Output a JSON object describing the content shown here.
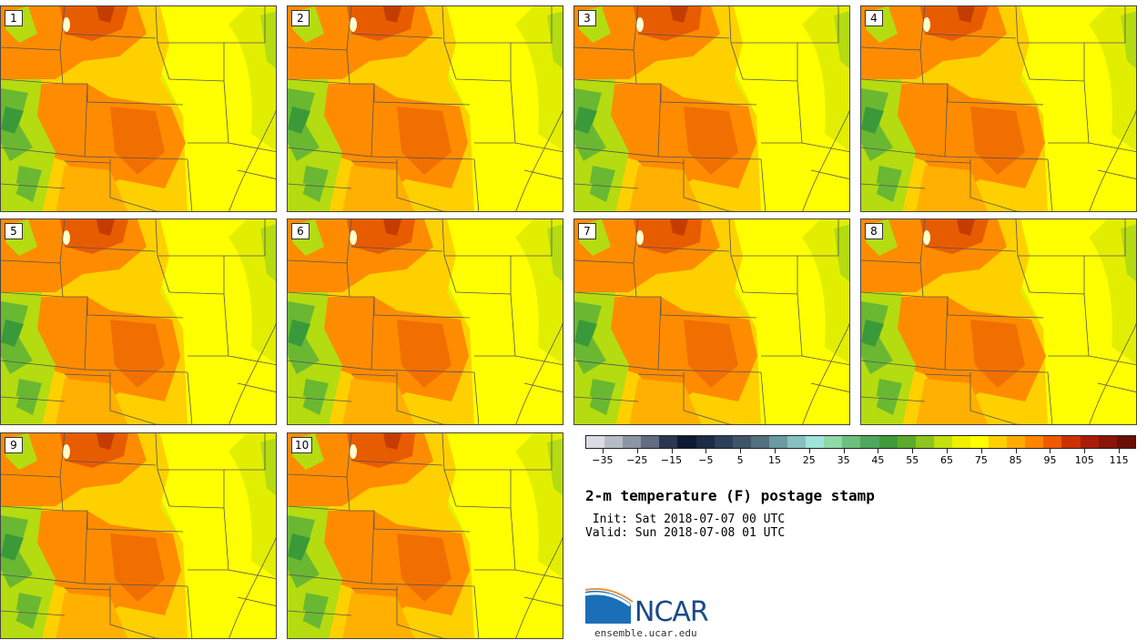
{
  "panels": [
    {
      "label": "1"
    },
    {
      "label": "2"
    },
    {
      "label": "3"
    },
    {
      "label": "4"
    },
    {
      "label": "5"
    },
    {
      "label": "6"
    },
    {
      "label": "7"
    },
    {
      "label": "8"
    },
    {
      "label": "9"
    },
    {
      "label": "10"
    }
  ],
  "colorbar": {
    "colors": [
      "#d9dde3",
      "#b6bcc6",
      "#8d95a4",
      "#626c80",
      "#2c3650",
      "#0f1a33",
      "#1c2c45",
      "#2c4058",
      "#3e5568",
      "#527080",
      "#6a9aa2",
      "#86c0c0",
      "#9ee4d8",
      "#8fd8a8",
      "#6dbf7e",
      "#4ea85c",
      "#3f9a3c",
      "#5caa2c",
      "#8ec41e",
      "#c4df10",
      "#eef000",
      "#ffff00",
      "#ffd000",
      "#ffaa00",
      "#ff8400",
      "#ee5a00",
      "#cc3200",
      "#a81c08",
      "#8a1408",
      "#6a0f04"
    ],
    "ticks": [
      "-35",
      "-25",
      "-15",
      "-5",
      "5",
      "15",
      "25",
      "35",
      "45",
      "55",
      "65",
      "75",
      "85",
      "95",
      "105",
      "115"
    ],
    "min": -40,
    "max": 120
  },
  "title": "2-m temperature (F) postage stamp",
  "init_text": " Init: Sat 2018-07-07 00 UTC",
  "valid_text": "Valid: Sun 2018-07-08 01 UTC",
  "logo": {
    "name": "NCAR",
    "site": "ensemble.ucar.edu"
  },
  "map_colors": {
    "hot": "#e85c00",
    "orange": "#ff8c00",
    "lightorange": "#ffb000",
    "amber": "#ffd000",
    "yellow": "#ffff00",
    "yellowgreen": "#e2ee00",
    "lime": "#b4dc10",
    "green": "#6ab832",
    "darkgreen": "#3a9a3a",
    "boundary": "#555555"
  }
}
